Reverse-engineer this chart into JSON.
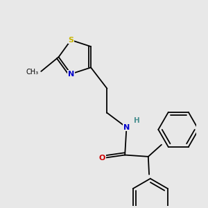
{
  "background_color": "#e8e8e8",
  "atom_colors": {
    "S": "#c8b400",
    "N": "#0000cc",
    "H": "#4a9090",
    "O": "#cc0000",
    "C": "#000000"
  },
  "lw": 1.3,
  "ring_r": 0.55,
  "hex_r": 0.62
}
